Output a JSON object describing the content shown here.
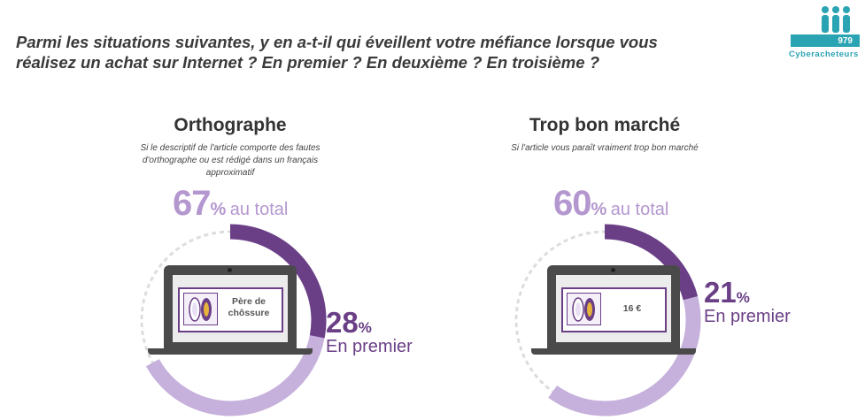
{
  "question": "Parmi les situations suivantes, y en a-t-il qui éveillent votre méfiance lorsque vous réalisez un achat sur Internet ? En premier ? En deuxième ? En troisième ?",
  "logo": {
    "count": "979",
    "caption": "Cyberacheteurs",
    "color": "#2aa3b3"
  },
  "colors": {
    "total_ring": "#c6b0dc",
    "first_ring": "#6a3f86",
    "dashed_ring": "#dddddd"
  },
  "chart_data": [
    {
      "type": "pie",
      "title": "Orthographe",
      "subtitle": "Si le descriptif de l'article comporte des fautes d'orthographe ou est rédigé dans un français approximatif",
      "total_value": 67,
      "total_unit": "%",
      "total_label": "au total",
      "first_value": 28,
      "first_unit": "%",
      "first_label": "En premier",
      "illustration_text": "Père de chôssure"
    },
    {
      "type": "pie",
      "title": "Trop bon marché",
      "subtitle": "Si l'article vous paraît vraiment trop bon marché",
      "total_value": 60,
      "total_unit": "%",
      "total_label": "au total",
      "first_value": 21,
      "first_unit": "%",
      "first_label": "En premier",
      "illustration_text": "16 €"
    }
  ]
}
